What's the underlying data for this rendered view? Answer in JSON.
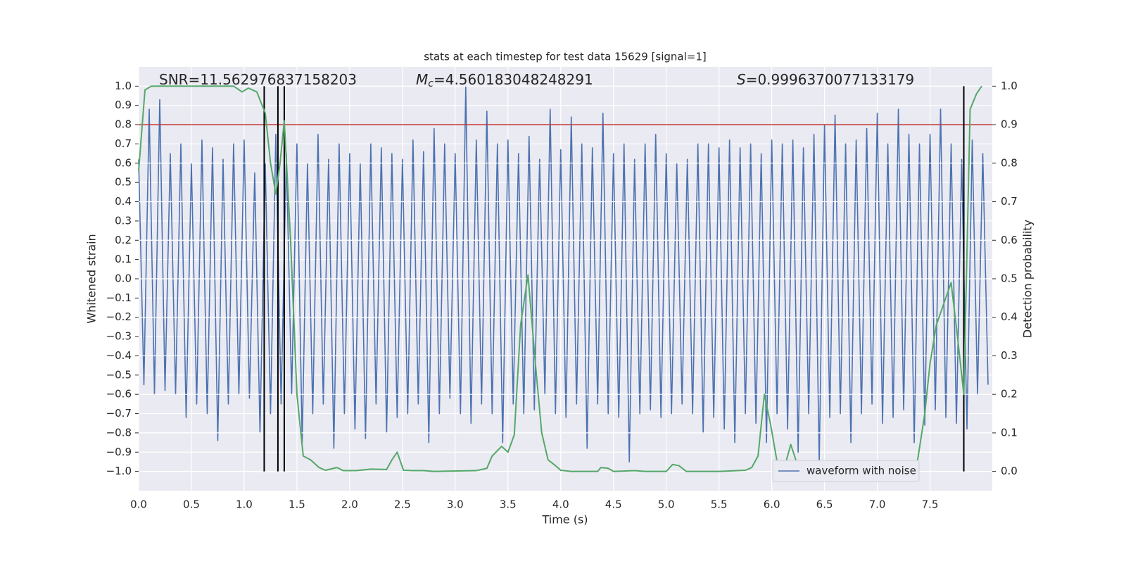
{
  "chart_data": {
    "type": "line",
    "title": "stats at each timestep for test data 15629 [signal=1]",
    "xlabel": "Time (s)",
    "ylabel": "Whitened strain",
    "y2label": "Detection probability",
    "annotations": [
      {
        "text": "SNR=11.562976837158203"
      },
      {
        "symbol": "M",
        "sub": "c",
        "text": "=4.560183048248291"
      },
      {
        "symbol": "S",
        "text": "=0.9996370077133179"
      }
    ],
    "xlim": [
      0,
      8.09
    ],
    "ylim": [
      -1.1,
      1.1
    ],
    "y2lim": [
      -0.05,
      1.05
    ],
    "xticks": [
      {
        "value": 0,
        "label": "0.0"
      },
      {
        "value": 0.5,
        "label": "0.5"
      },
      {
        "value": 1,
        "label": "1.0"
      },
      {
        "value": 1.5,
        "label": "1.5"
      },
      {
        "value": 2,
        "label": "2.0"
      },
      {
        "value": 2.5,
        "label": "2.5"
      },
      {
        "value": 3,
        "label": "3.0"
      },
      {
        "value": 3.5,
        "label": "3.5"
      },
      {
        "value": 4,
        "label": "4.0"
      },
      {
        "value": 4.5,
        "label": "4.5"
      },
      {
        "value": 5,
        "label": "5.0"
      },
      {
        "value": 5.5,
        "label": "5.5"
      },
      {
        "value": 6,
        "label": "6.0"
      },
      {
        "value": 6.5,
        "label": "6.5"
      },
      {
        "value": 7,
        "label": "7.0"
      },
      {
        "value": 7.5,
        "label": "7.5"
      }
    ],
    "yticks": [
      {
        "value": 1,
        "label": "1.0"
      },
      {
        "value": 0.9,
        "label": "0.9"
      },
      {
        "value": 0.8,
        "label": "0.8"
      },
      {
        "value": 0.7,
        "label": "0.7"
      },
      {
        "value": 0.6,
        "label": "0.6"
      },
      {
        "value": 0.5,
        "label": "0.5"
      },
      {
        "value": 0.4,
        "label": "0.4"
      },
      {
        "value": 0.3,
        "label": "0.3"
      },
      {
        "value": 0.2,
        "label": "0.2"
      },
      {
        "value": 0.1,
        "label": "0.1"
      },
      {
        "value": 0,
        "label": "0.0"
      },
      {
        "value": -0.1,
        "label": "−0.1"
      },
      {
        "value": -0.2,
        "label": "−0.2"
      },
      {
        "value": -0.3,
        "label": "−0.3"
      },
      {
        "value": -0.4,
        "label": "−0.4"
      },
      {
        "value": -0.5,
        "label": "−0.5"
      },
      {
        "value": -0.6,
        "label": "−0.6"
      },
      {
        "value": -0.7,
        "label": "−0.7"
      },
      {
        "value": -0.8,
        "label": "−0.8"
      },
      {
        "value": -0.9,
        "label": "−0.9"
      },
      {
        "value": -1,
        "label": "−1.0"
      }
    ],
    "y2ticks": [
      {
        "value": 1,
        "label": "1.0"
      },
      {
        "value": 0.9,
        "label": "0.9"
      },
      {
        "value": 0.8,
        "label": "0.8"
      },
      {
        "value": 0.7,
        "label": "0.7"
      },
      {
        "value": 0.6,
        "label": "0.6"
      },
      {
        "value": 0.5,
        "label": "0.5"
      },
      {
        "value": 0.4,
        "label": "0.4"
      },
      {
        "value": 0.3,
        "label": "0.3"
      },
      {
        "value": 0.2,
        "label": "0.2"
      },
      {
        "value": 0.1,
        "label": "0.1"
      },
      {
        "value": 0,
        "label": "0.0"
      }
    ],
    "grid": true,
    "legend": "lower right",
    "threshold": 0.9,
    "threshold_color": "#c03030",
    "vlines": [
      1.19,
      1.32,
      1.38,
      7.82
    ],
    "vline_range": [
      -1,
      1
    ],
    "vline_color": "#000000",
    "series": [
      {
        "name": "waveform with noise",
        "color": "#4c72b0",
        "x": [
          0,
          0.05,
          0.1,
          0.15,
          0.2,
          0.25,
          0.3,
          0.35,
          0.4,
          0.45,
          0.5,
          0.55,
          0.6,
          0.65,
          0.7,
          0.75,
          0.8,
          0.85,
          0.9,
          0.95,
          1,
          1.05,
          1.1,
          1.15,
          1.2,
          1.25,
          1.3,
          1.35,
          1.4,
          1.45,
          1.5,
          1.55,
          1.6,
          1.65,
          1.7,
          1.75,
          1.8,
          1.85,
          1.9,
          1.95,
          2,
          2.05,
          2.1,
          2.15,
          2.2,
          2.25,
          2.3,
          2.35,
          2.4,
          2.45,
          2.5,
          2.55,
          2.6,
          2.65,
          2.7,
          2.75,
          2.8,
          2.85,
          2.9,
          2.95,
          3,
          3.05,
          3.1,
          3.15,
          3.2,
          3.25,
          3.3,
          3.35,
          3.4,
          3.45,
          3.5,
          3.55,
          3.6,
          3.65,
          3.7,
          3.75,
          3.8,
          3.85,
          3.9,
          3.95,
          4,
          4.05,
          4.1,
          4.15,
          4.2,
          4.25,
          4.3,
          4.35,
          4.4,
          4.45,
          4.5,
          4.55,
          4.6,
          4.65,
          4.7,
          4.75,
          4.8,
          4.85,
          4.9,
          4.95,
          5,
          5.05,
          5.1,
          5.15,
          5.2,
          5.25,
          5.3,
          5.35,
          5.4,
          5.45,
          5.5,
          5.55,
          5.6,
          5.65,
          5.7,
          5.75,
          5.8,
          5.85,
          5.9,
          5.95,
          6,
          6.05,
          6.1,
          6.15,
          6.2,
          6.25,
          6.3,
          6.35,
          6.4,
          6.45,
          6.5,
          6.55,
          6.6,
          6.65,
          6.7,
          6.75,
          6.8,
          6.85,
          6.9,
          6.95,
          7,
          7.05,
          7.1,
          7.15,
          7.2,
          7.25,
          7.3,
          7.35,
          7.4,
          7.45,
          7.5,
          7.55,
          7.6,
          7.65,
          7.7,
          7.75,
          7.8,
          7.85,
          7.9,
          7.95,
          8,
          8.05
        ],
        "values": [
          0.62,
          -0.55,
          0.88,
          -0.6,
          0.93,
          -0.58,
          0.65,
          -0.6,
          0.7,
          -0.72,
          0.6,
          -0.65,
          0.72,
          -0.7,
          0.68,
          -0.84,
          0.62,
          -0.65,
          0.7,
          -0.6,
          0.72,
          -0.62,
          0.55,
          -0.8,
          0.6,
          -0.7,
          0.75,
          -0.65,
          0.65,
          -0.6,
          0.7,
          -0.85,
          0.6,
          -0.7,
          0.75,
          -0.65,
          0.62,
          -0.88,
          0.7,
          -0.7,
          0.65,
          -0.78,
          0.6,
          -0.83,
          0.7,
          -0.65,
          0.68,
          -0.8,
          0.65,
          -0.72,
          0.62,
          -0.7,
          0.72,
          -0.65,
          0.66,
          -0.85,
          0.78,
          -0.7,
          0.7,
          -0.62,
          0.65,
          -0.7,
          1.0,
          -0.75,
          0.72,
          -0.65,
          0.87,
          -0.7,
          0.7,
          -0.85,
          0.72,
          -0.65,
          0.65,
          -0.7,
          0.74,
          -0.68,
          0.62,
          -0.6,
          0.88,
          -0.7,
          0.67,
          -0.72,
          0.84,
          -0.65,
          0.7,
          -0.88,
          0.68,
          -0.65,
          0.86,
          -0.7,
          0.65,
          -0.72,
          0.7,
          -0.95,
          0.62,
          -0.7,
          0.7,
          -0.68,
          0.75,
          -0.72,
          0.65,
          -0.7,
          0.6,
          -0.65,
          0.62,
          -0.7,
          0.7,
          -0.8,
          0.7,
          -0.72,
          0.68,
          -0.78,
          0.72,
          -0.85,
          0.68,
          -0.7,
          0.7,
          -0.75,
          0.65,
          -0.85,
          0.72,
          -0.7,
          0.7,
          -0.78,
          0.72,
          -0.9,
          0.68,
          -0.7,
          0.75,
          -0.95,
          0.8,
          -0.72,
          0.85,
          -0.7,
          0.7,
          -0.85,
          0.72,
          -0.7,
          0.78,
          -0.65,
          0.86,
          -0.75,
          0.7,
          -0.72,
          0.88,
          -0.68,
          0.75,
          -0.85,
          0.7,
          -0.76,
          0.75,
          -0.68,
          0.88,
          -0.72,
          0.7,
          -0.75,
          0.62,
          -0.78,
          0.72,
          -0.6,
          0.65,
          -0.55
        ]
      },
      {
        "color": "#55a868",
        "axis": "y2",
        "x": [
          0,
          0.06,
          0.12,
          0.9,
          0.98,
          1.04,
          1.12,
          1.2,
          1.25,
          1.3,
          1.34,
          1.38,
          1.44,
          1.5,
          1.56,
          1.63,
          1.71,
          1.77,
          1.88,
          1.94,
          2.06,
          2.2,
          2.35,
          2.4,
          2.45,
          2.51,
          2.6,
          2.7,
          2.8,
          3.2,
          3.3,
          3.35,
          3.44,
          3.5,
          3.56,
          3.62,
          3.69,
          3.76,
          3.82,
          3.88,
          3.95,
          4.0,
          4.1,
          4.35,
          4.38,
          4.45,
          4.5,
          4.7,
          4.8,
          5.0,
          5.06,
          5.12,
          5.19,
          5.5,
          5.75,
          5.81,
          5.87,
          5.93,
          5.99,
          6.06,
          6.12,
          6.18,
          6.24,
          6.31,
          6.44,
          6.5,
          6.6,
          6.9,
          7.0,
          7.2,
          7.27,
          7.33,
          7.38,
          7.45,
          7.5,
          7.56,
          7.7,
          7.76,
          7.82,
          7.88,
          7.94,
          7.99
        ],
        "values": [
          0.78,
          0.99,
          1.0,
          1.0,
          0.985,
          0.995,
          0.985,
          0.93,
          0.8,
          0.72,
          0.8,
          0.91,
          0.6,
          0.2,
          0.04,
          0.03,
          0.01,
          0.003,
          0.01,
          0.002,
          0.002,
          0.006,
          0.005,
          0.03,
          0.05,
          0.003,
          0.002,
          0.002,
          0.0,
          0.002,
          0.008,
          0.04,
          0.065,
          0.05,
          0.095,
          0.38,
          0.51,
          0.28,
          0.1,
          0.03,
          0.015,
          0.003,
          0.0,
          0.0,
          0.01,
          0.008,
          0.0,
          0.002,
          0.0,
          0.0,
          0.018,
          0.015,
          0.0,
          0.0,
          0.003,
          0.01,
          0.04,
          0.2,
          0.12,
          0.01,
          0.01,
          0.07,
          0.02,
          0.0,
          0.0,
          0.008,
          0.002,
          0.003,
          0.0,
          0.005,
          0.01,
          0.009,
          0.025,
          0.15,
          0.28,
          0.38,
          0.49,
          0.35,
          0.2,
          0.94,
          0.98,
          1.0
        ]
      }
    ]
  }
}
